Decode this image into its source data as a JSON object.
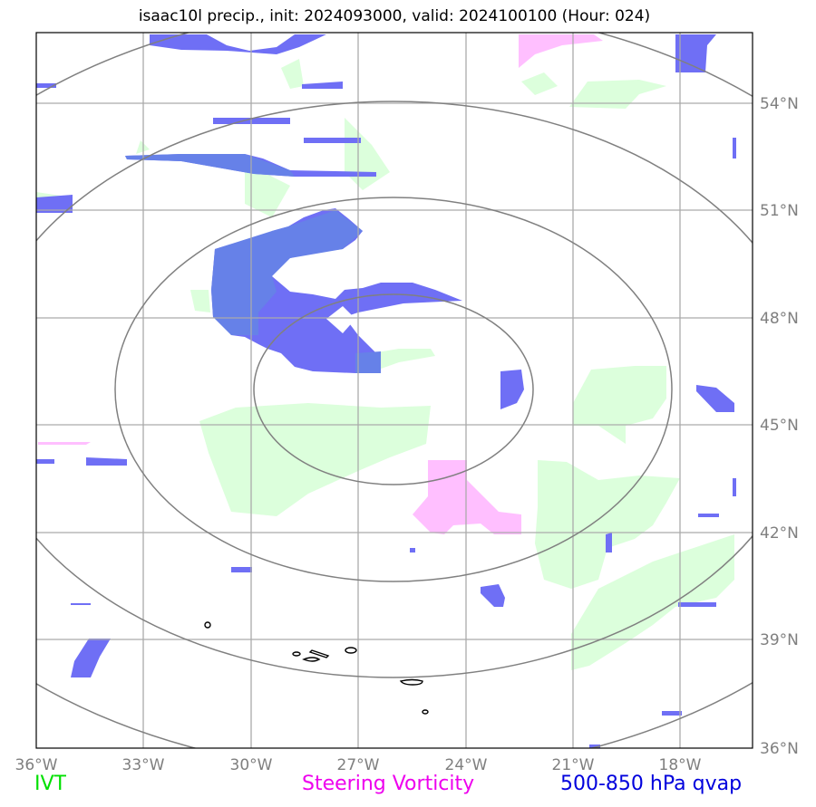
{
  "title": "isaac10l precip., init: 2024093000, valid: 2024100100 (Hour: 024)",
  "lat_labels": [
    "54°N",
    "51°N",
    "48°N",
    "45°N",
    "42°N",
    "39°N",
    "36°N"
  ],
  "lon_labels": [
    "36°W",
    "33°W",
    "30°W",
    "27°W",
    "24°W",
    "21°W",
    "18°W"
  ],
  "legend": {
    "ivt": "IVT",
    "vorticity": "Steering Vorticity",
    "qvap": "500-850 hPa qvap"
  },
  "colors": {
    "ivt_fill": "#dcffdc",
    "vorticity_fill": "#ffbfff",
    "qvap_fill": "#6f6ff5",
    "qvap_overlap": "#6681e8",
    "grid": "#aaaaaa",
    "range_rings": "#808080",
    "legend_ivt": "#00e000",
    "legend_vorticity": "#ee00ee",
    "legend_qvap": "#0000dd"
  }
}
